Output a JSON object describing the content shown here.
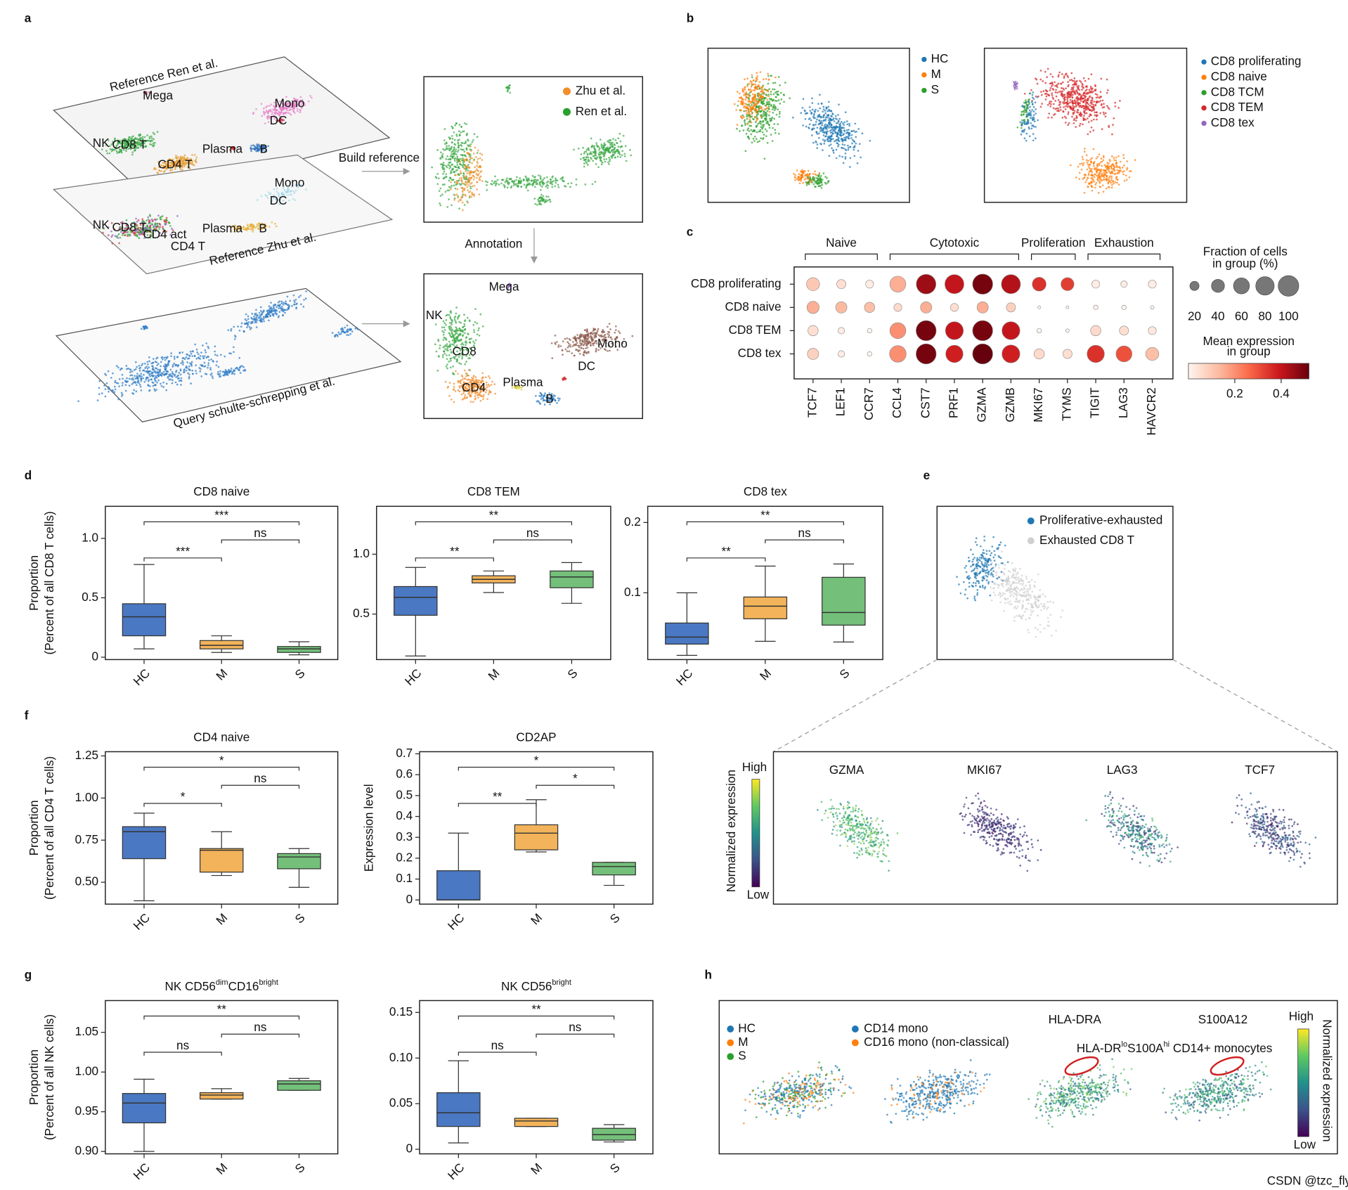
{
  "panel_labels": [
    "a",
    "b",
    "c",
    "d",
    "e",
    "f",
    "g",
    "h"
  ],
  "panel_a": {
    "layer_top": {
      "title": "Reference Ren et al.",
      "clusters": [
        "Mega",
        "Mono",
        "DC",
        "NK",
        "CD8 T",
        "CD4 T",
        "Plasma",
        "B"
      ]
    },
    "layer_mid": {
      "title": "Reference Zhu et al.",
      "clusters": [
        "Mono",
        "DC",
        "NK",
        "CD8 T",
        "CD4 act",
        "CD4 T",
        "Plasma",
        "B"
      ]
    },
    "layer_query": {
      "title": "Query schulte-schrepping et al."
    },
    "build_reference": "Build reference",
    "annotation": "Annotation",
    "reference_legend": [
      {
        "name": "Zhu et al.",
        "color": "#f28e2b"
      },
      {
        "name": "Ren et al.",
        "color": "#2ca02c"
      }
    ],
    "annotated_clusters": [
      "Mega",
      "NK",
      "CD8",
      "CD4",
      "Plasma",
      "B",
      "DC",
      "Mono"
    ]
  },
  "panel_b": {
    "condition_legend": [
      {
        "name": "HC",
        "color": "#1f77b4"
      },
      {
        "name": "M",
        "color": "#ff7f0e"
      },
      {
        "name": "S",
        "color": "#2ca02c"
      }
    ],
    "subtype_legend": [
      {
        "name": "CD8 proliferating",
        "color": "#1f77b4"
      },
      {
        "name": "CD8 naive",
        "color": "#ff7f0e"
      },
      {
        "name": "CD8 TCM",
        "color": "#2ca02c"
      },
      {
        "name": "CD8 TEM",
        "color": "#d62728"
      },
      {
        "name": "CD8 tex",
        "color": "#9467bd"
      }
    ]
  },
  "panel_e": {
    "legend": [
      {
        "name": "Proliferative-exhausted",
        "color": "#1f77b4"
      },
      {
        "name": "Exhausted CD8 T",
        "color": "#cfcfcf"
      }
    ],
    "genes": [
      "GZMA",
      "MKI67",
      "LAG3",
      "TCF7"
    ],
    "colorbar": {
      "label": "Normalized expression",
      "high": "High",
      "low": "Low"
    }
  },
  "panel_h": {
    "condition_legend": [
      {
        "name": "HC",
        "color": "#1f77b4"
      },
      {
        "name": "M",
        "color": "#ff7f0e"
      },
      {
        "name": "S",
        "color": "#2ca02c"
      }
    ],
    "monocyte_legend": [
      {
        "name": "CD14 mono",
        "color": "#1f77b4"
      },
      {
        "name": "CD16 mono (non-classical)",
        "color": "#ff7f0e"
      }
    ],
    "genes": [
      "HLA-DRA",
      "S100A12"
    ],
    "highlight": [
      {
        "text": "HLA-DR"
      },
      {
        "text": "lo",
        "sup": true
      },
      {
        "text": "S100A"
      },
      {
        "text": "hi",
        "sup": true
      },
      {
        "text": " CD14+ monocytes"
      }
    ],
    "colorbar": {
      "label": "Normalized expression",
      "high": "High",
      "low": "Low"
    }
  },
  "watermark": "CSDN @tzc_fly",
  "chart_data": [
    {
      "type": "dotplot",
      "rows": [
        "CD8 proliferating",
        "CD8 naive",
        "CD8 TEM",
        "CD8 tex"
      ],
      "columns": [
        "TCF7",
        "LEF1",
        "CCR7",
        "CCL4",
        "CST7",
        "PRF1",
        "GZMA",
        "GZMB",
        "MKI67",
        "TYMS",
        "TIGIT",
        "LAG3",
        "HAVCR2"
      ],
      "groups": [
        {
          "name": "Naive",
          "from": 0,
          "to": 2
        },
        {
          "name": "Cytotoxic",
          "from": 3,
          "to": 7
        },
        {
          "name": "Proliferation",
          "from": 8,
          "to": 9
        },
        {
          "name": "Exhaustion",
          "from": 10,
          "to": 12
        }
      ],
      "fraction": [
        [
          40,
          20,
          15,
          60,
          90,
          85,
          95,
          85,
          45,
          40,
          15,
          10,
          15
        ],
        [
          35,
          30,
          25,
          15,
          30,
          15,
          30,
          20,
          2,
          2,
          5,
          5,
          3
        ],
        [
          25,
          10,
          5,
          60,
          95,
          75,
          95,
          75,
          5,
          3,
          25,
          20,
          15
        ],
        [
          30,
          10,
          5,
          65,
          95,
          70,
          95,
          75,
          25,
          20,
          70,
          60,
          40
        ]
      ],
      "expression": [
        [
          0.1,
          0.05,
          0.02,
          0.15,
          0.45,
          0.4,
          0.5,
          0.42,
          0.35,
          0.33,
          0.02,
          0.02,
          0.02
        ],
        [
          0.15,
          0.13,
          0.12,
          0.06,
          0.15,
          0.05,
          0.15,
          0.08,
          0,
          0,
          0,
          0,
          0
        ],
        [
          0.05,
          0.02,
          0,
          0.2,
          0.5,
          0.4,
          0.5,
          0.4,
          0,
          0,
          0.06,
          0.05,
          0.03
        ],
        [
          0.08,
          0.02,
          0,
          0.2,
          0.5,
          0.38,
          0.52,
          0.38,
          0.06,
          0.05,
          0.35,
          0.3,
          0.12
        ]
      ],
      "size_legend": {
        "title": [
          "Fraction of cells",
          "in group (%)"
        ],
        "ticks": [
          20,
          40,
          60,
          80,
          100
        ]
      },
      "color_legend": {
        "title": [
          "Mean expression",
          "in group"
        ],
        "clim": [
          0,
          0.52
        ],
        "ticks": [
          0.2,
          0.4
        ]
      },
      "colormap": "Reds"
    },
    {
      "type": "box",
      "title": "CD8 naive",
      "ylabel": [
        "Proportion",
        "(Percent of all CD8 T cells)"
      ],
      "categories": [
        "HC",
        "M",
        "S"
      ],
      "colors": [
        "#4a78c2",
        "#f2b35a",
        "#74c07a"
      ],
      "stats": [
        {
          "whislo": 0.07,
          "q1": 0.18,
          "med": 0.34,
          "q3": 0.45,
          "whishi": 0.78
        },
        {
          "whislo": 0.04,
          "q1": 0.07,
          "med": 0.1,
          "q3": 0.14,
          "whishi": 0.18
        },
        {
          "whislo": 0.02,
          "q1": 0.04,
          "med": 0.07,
          "q3": 0.09,
          "whishi": 0.13
        }
      ],
      "ylim": [
        -0.02,
        1.27
      ],
      "yticks": [
        0,
        0.5,
        {
          "value": 1,
          "label": "1.0"
        }
      ],
      "brackets": [
        {
          "from": 0,
          "to": 2,
          "label": "***"
        },
        {
          "from": 1,
          "to": 2,
          "label": "ns"
        },
        {
          "from": 0,
          "to": 1,
          "label": "***"
        }
      ]
    },
    {
      "type": "box",
      "title": "CD8 TEM",
      "categories": [
        "HC",
        "M",
        "S"
      ],
      "colors": [
        "#4a78c2",
        "#f2b35a",
        "#74c07a"
      ],
      "stats": [
        {
          "whislo": 0.15,
          "q1": 0.49,
          "med": 0.64,
          "q3": 0.73,
          "whishi": 0.89
        },
        {
          "whislo": 0.68,
          "q1": 0.76,
          "med": 0.79,
          "q3": 0.82,
          "whishi": 0.86
        },
        {
          "whislo": 0.59,
          "q1": 0.72,
          "med": 0.81,
          "q3": 0.86,
          "whishi": 0.93
        }
      ],
      "ylim": [
        0.12,
        1.4
      ],
      "yticks": [
        0.5,
        {
          "value": 1,
          "label": "1.0"
        }
      ],
      "brackets": [
        {
          "from": 0,
          "to": 2,
          "label": "**"
        },
        {
          "from": 1,
          "to": 2,
          "label": "ns"
        },
        {
          "from": 0,
          "to": 1,
          "label": "**"
        }
      ]
    },
    {
      "type": "box",
      "title": "CD8 tex",
      "categories": [
        "HC",
        "M",
        "S"
      ],
      "colors": [
        "#4a78c2",
        "#f2b35a",
        "#74c07a"
      ],
      "stats": [
        {
          "whislo": 0.011,
          "q1": 0.027,
          "med": 0.037,
          "q3": 0.057,
          "whishi": 0.1
        },
        {
          "whislo": 0.031,
          "q1": 0.063,
          "med": 0.081,
          "q3": 0.094,
          "whishi": 0.138
        },
        {
          "whislo": 0.03,
          "q1": 0.054,
          "med": 0.072,
          "q3": 0.122,
          "whishi": 0.141
        }
      ],
      "ylim": [
        0.005,
        0.223
      ],
      "yticks": [
        0.1,
        0.2
      ],
      "brackets": [
        {
          "from": 0,
          "to": 2,
          "label": "**"
        },
        {
          "from": 1,
          "to": 2,
          "label": "ns"
        },
        {
          "from": 0,
          "to": 1,
          "label": "**"
        }
      ]
    },
    {
      "type": "box",
      "title": "CD4 naive",
      "ylabel": [
        "Proportion",
        "(Percent of all CD4 T cells)"
      ],
      "categories": [
        "HC",
        "M",
        "S"
      ],
      "colors": [
        "#4a78c2",
        "#f2b35a",
        "#74c07a"
      ],
      "stats": [
        {
          "whislo": 0.39,
          "q1": 0.64,
          "med": 0.8,
          "q3": 0.83,
          "whishi": 0.91
        },
        {
          "whislo": 0.54,
          "q1": 0.56,
          "med": 0.69,
          "q3": 0.7,
          "whishi": 0.8
        },
        {
          "whislo": 0.47,
          "q1": 0.58,
          "med": 0.65,
          "q3": 0.67,
          "whishi": 0.7
        }
      ],
      "ylim": [
        0.37,
        1.275
      ],
      "yticks": [
        {
          "value": 0.5,
          "label": "0.50"
        },
        0.75,
        {
          "value": 1,
          "label": "1.00"
        },
        1.25
      ],
      "brackets": [
        {
          "from": 0,
          "to": 2,
          "label": "*"
        },
        {
          "from": 1,
          "to": 2,
          "label": "ns"
        },
        {
          "from": 0,
          "to": 1,
          "label": "*"
        }
      ]
    },
    {
      "type": "box",
      "title": "CD2AP",
      "ylabel": [
        "Expression level"
      ],
      "categories": [
        "HC",
        "M",
        "S"
      ],
      "colors": [
        "#4a78c2",
        "#f2b35a",
        "#74c07a"
      ],
      "stats": [
        {
          "whislo": 0,
          "q1": 0,
          "med": 0,
          "q3": 0.14,
          "whishi": 0.32
        },
        {
          "whislo": 0.23,
          "q1": 0.24,
          "med": 0.32,
          "q3": 0.36,
          "whishi": 0.48
        },
        {
          "whislo": 0.07,
          "q1": 0.12,
          "med": 0.16,
          "q3": 0.18,
          "whishi": 0.18
        }
      ],
      "ylim": [
        -0.02,
        0.71
      ],
      "yticks": [
        0,
        0.1,
        0.2,
        0.3,
        0.4,
        0.5,
        0.6,
        0.7
      ],
      "brackets": [
        {
          "from": 0,
          "to": 2,
          "label": "*"
        },
        {
          "from": 1,
          "to": 2,
          "label": "*"
        },
        {
          "from": 0,
          "to": 1,
          "label": "**"
        }
      ]
    },
    {
      "type": "box",
      "title": [
        {
          "text": "NK CD56"
        },
        {
          "text": "dim",
          "sup": true
        },
        {
          "text": "CD16"
        },
        {
          "text": "bright",
          "sup": true
        }
      ],
      "ylabel": [
        "Proportion",
        "(Percent of all NK cells)"
      ],
      "categories": [
        "HC",
        "M",
        "S"
      ],
      "colors": [
        "#4a78c2",
        "#f2b35a",
        "#74c07a"
      ],
      "stats": [
        {
          "whislo": 0.9,
          "q1": 0.936,
          "med": 0.961,
          "q3": 0.973,
          "whishi": 0.991
        },
        {
          "whislo": 0.966,
          "q1": 0.966,
          "med": 0.971,
          "q3": 0.974,
          "whishi": 0.979
        },
        {
          "whislo": 0.977,
          "q1": 0.977,
          "med": 0.985,
          "q3": 0.989,
          "whishi": 0.992
        }
      ],
      "ylim": [
        0.897,
        1.09
      ],
      "yticks": [
        {
          "value": 0.9,
          "label": "0.90"
        },
        0.95,
        {
          "value": 1,
          "label": "1.00"
        },
        1.05
      ],
      "brackets": [
        {
          "from": 0,
          "to": 2,
          "label": "**"
        },
        {
          "from": 1,
          "to": 2,
          "label": "ns"
        },
        {
          "from": 0,
          "to": 1,
          "label": "ns"
        }
      ]
    },
    {
      "type": "box",
      "title": [
        {
          "text": "NK CD56"
        },
        {
          "text": "bright",
          "sup": true
        }
      ],
      "categories": [
        "HC",
        "M",
        "S"
      ],
      "colors": [
        "#4a78c2",
        "#f2b35a",
        "#74c07a"
      ],
      "stats": [
        {
          "whislo": 0.007,
          "q1": 0.025,
          "med": 0.04,
          "q3": 0.062,
          "whishi": 0.097
        },
        {
          "whislo": 0.025,
          "q1": 0.025,
          "med": 0.031,
          "q3": 0.034,
          "whishi": 0.034
        },
        {
          "whislo": 0.008,
          "q1": 0.01,
          "med": 0.016,
          "q3": 0.023,
          "whishi": 0.027
        }
      ],
      "ylim": [
        -0.005,
        0.163
      ],
      "yticks": [
        0,
        0.05,
        {
          "value": 0.1,
          "label": "0.10"
        },
        0.15
      ],
      "brackets": [
        {
          "from": 0,
          "to": 2,
          "label": "**"
        },
        {
          "from": 1,
          "to": 2,
          "label": "ns"
        },
        {
          "from": 0,
          "to": 1,
          "label": "ns"
        }
      ]
    }
  ]
}
